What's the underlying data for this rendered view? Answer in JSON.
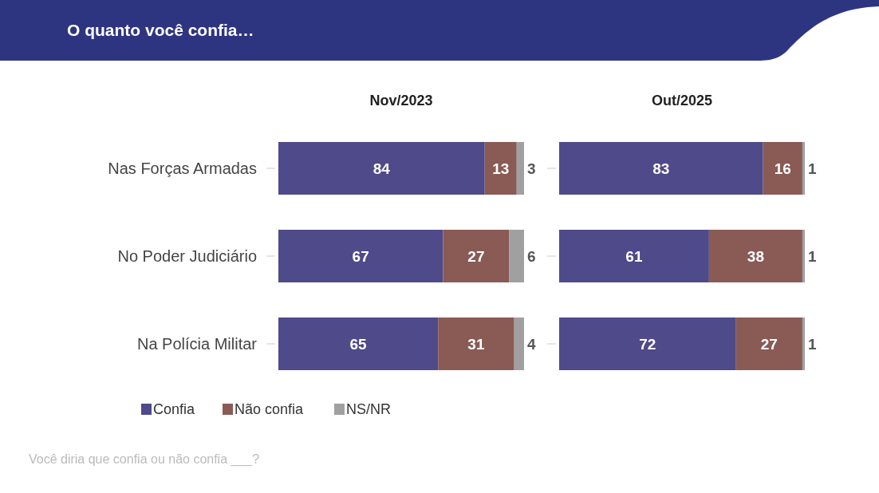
{
  "chart_data": [
    {
      "type": "bar",
      "orientation": "horizontal",
      "stacked": true,
      "title": "Nov/2023",
      "categories": [
        "Nas Forças Armadas",
        "No Poder Judiciário",
        "Na Polícia Militar"
      ],
      "series": [
        {
          "name": "Confia",
          "color": "#4f4a8a",
          "values": [
            84,
            67,
            65
          ]
        },
        {
          "name": "Não confia",
          "color": "#8a5a55",
          "values": [
            13,
            27,
            31
          ]
        },
        {
          "name": "NS/NR",
          "color": "#a0a0a0",
          "values": [
            3,
            6,
            4
          ]
        }
      ],
      "data_labels": true,
      "legend": "bottom left",
      "tick_labels": "y",
      "annotations": [
        "O quanto você confia…",
        "Você diria que confia ou não confia ___?"
      ]
    },
    {
      "type": "bar",
      "orientation": "horizontal",
      "stacked": true,
      "title": "Out/2025",
      "categories": [
        null,
        null,
        null
      ],
      "series": [
        {
          "color": "#4f4a8a",
          "values": [
            83,
            61,
            72
          ]
        },
        {
          "color": "#8a5a55",
          "values": [
            16,
            38,
            27
          ]
        },
        {
          "color": "#a0a0a0",
          "values": [
            1,
            1,
            1
          ]
        }
      ],
      "data_labels": true,
      "tick_labels": false
    }
  ]
}
